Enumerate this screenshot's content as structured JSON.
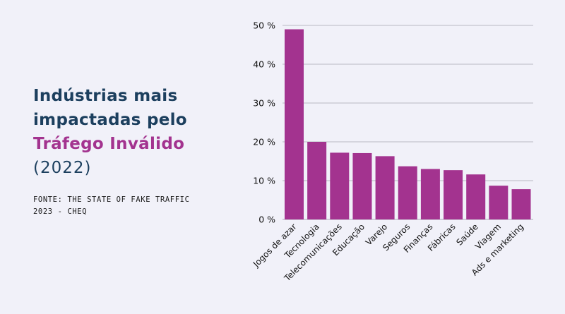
{
  "heading": {
    "line1": "Indústrias mais",
    "line2": "impactadas pelo",
    "line3": "Tráfego Inválido",
    "line4": "(2022)"
  },
  "source": {
    "line1": "FONTE: THE STATE OF FAKE TRAFFIC",
    "line2": "2023 - CHEQ"
  },
  "colors": {
    "bar": "#a3338f",
    "title": "#1c3f5e",
    "accent": "#a3338f",
    "grid": "#b9b9c4",
    "background": "#f1f1f9"
  },
  "chart_data": {
    "type": "bar",
    "categories": [
      "Jogos de azar",
      "Tecnologia",
      "Telecomunicações",
      "Educação",
      "Varejo",
      "Seguros",
      "Finanças",
      "Fábricas",
      "Saúde",
      "Viagem",
      "Ads e marketing"
    ],
    "values": [
      49,
      20,
      17.2,
      17.1,
      16.3,
      13.7,
      13,
      12.7,
      11.6,
      8.7,
      7.8
    ],
    "ylim": [
      0,
      50
    ],
    "yticks": [
      0,
      10,
      20,
      30,
      40,
      50
    ],
    "ytick_labels": [
      "0 %",
      "10 %",
      "20 %",
      "30 %",
      "40 %",
      "50 %"
    ],
    "grid": true,
    "xlabel": "",
    "ylabel": ""
  }
}
